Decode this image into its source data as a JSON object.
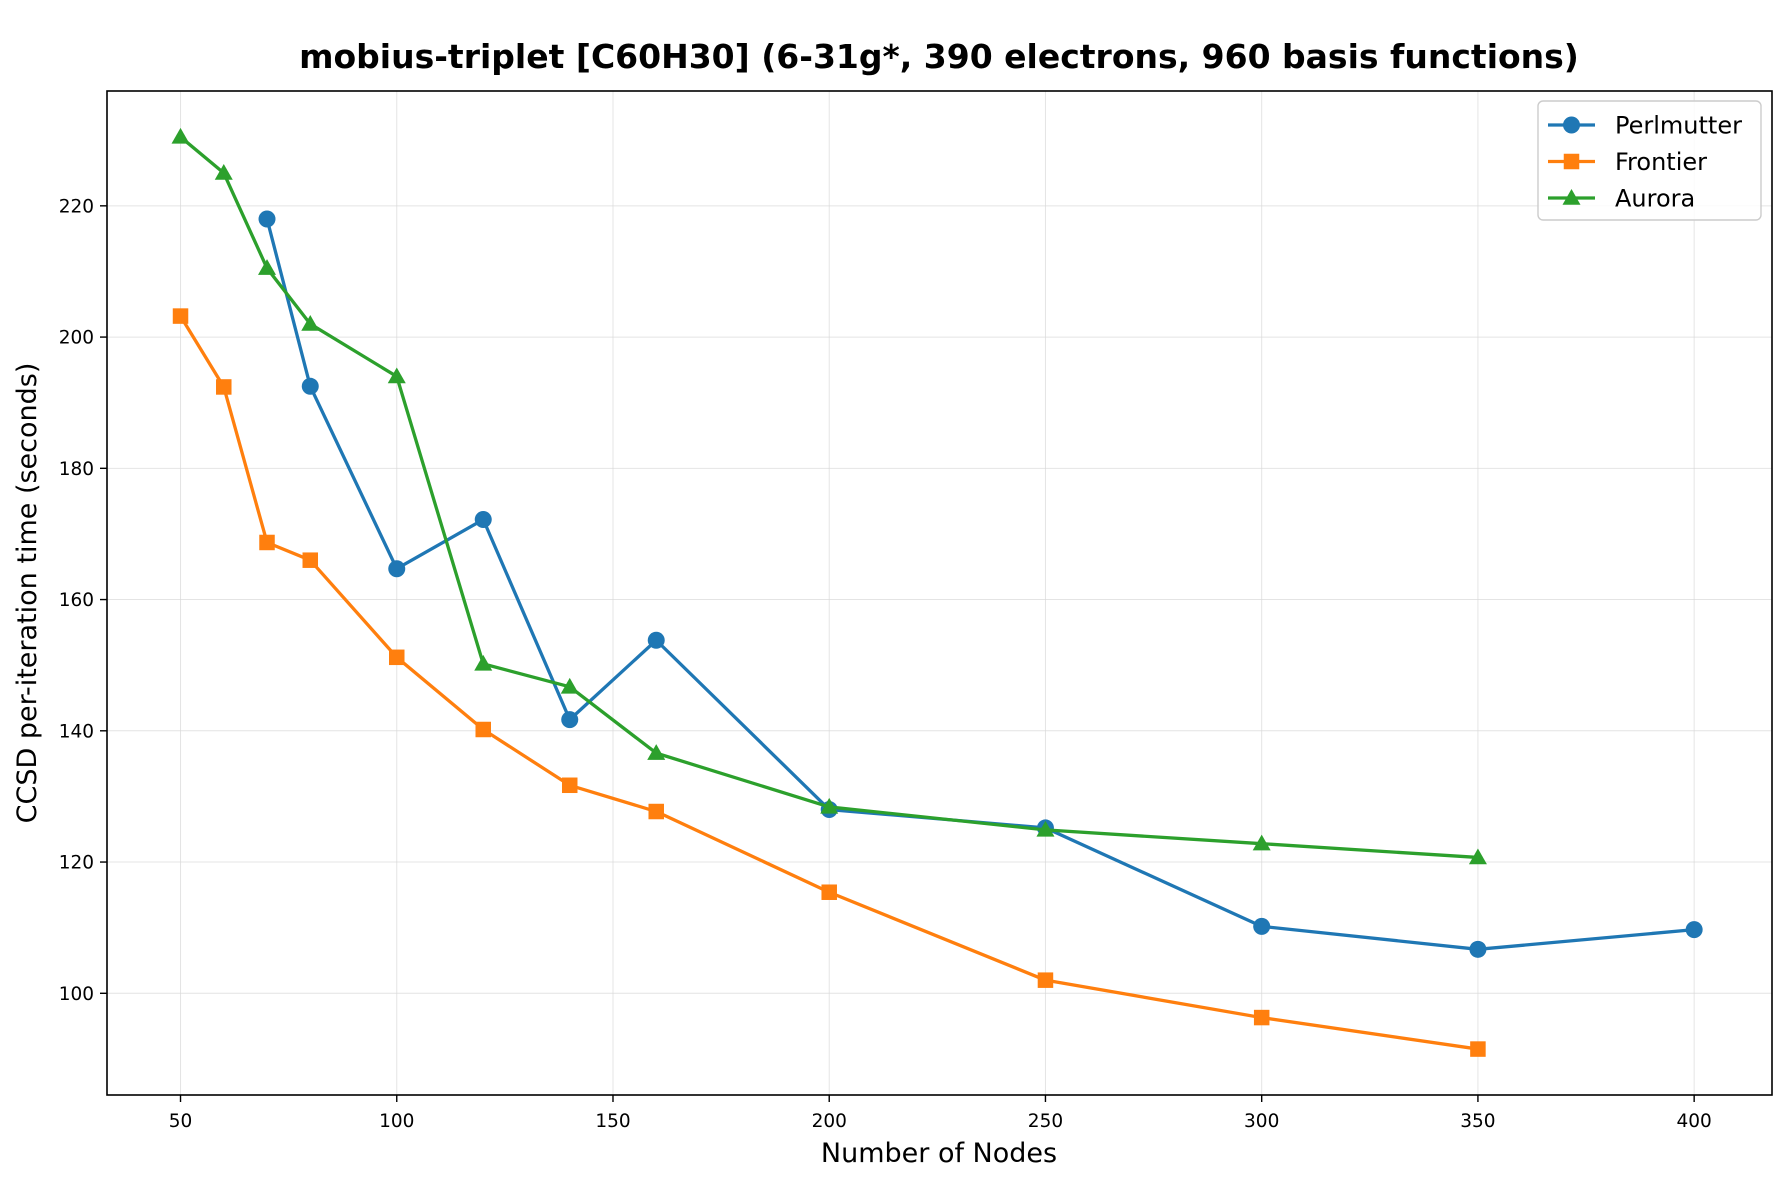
{
  "chart_data": {
    "type": "line",
    "title": "mobius-triplet [C60H30] (6-31g*, 390 electrons, 960 basis functions)",
    "xlabel": "Number of Nodes",
    "ylabel": "CCSD per-iteration time (seconds)",
    "xlim": [
      33,
      418
    ],
    "ylim": [
      84.5,
      237.5
    ],
    "xticks": [
      50,
      100,
      150,
      200,
      250,
      300,
      350,
      400
    ],
    "yticks": [
      100,
      120,
      140,
      160,
      180,
      200,
      220
    ],
    "grid": true,
    "legend_position": "top-right",
    "series": [
      {
        "name": "Perlmutter",
        "color": "#1f77b4",
        "marker": "circle",
        "x": [
          70,
          80,
          100,
          120,
          140,
          160,
          200,
          250,
          300,
          350,
          400
        ],
        "y": [
          218,
          192.5,
          164.7,
          172.2,
          141.7,
          153.8,
          128,
          125.2,
          110.2,
          106.7,
          109.7
        ]
      },
      {
        "name": "Frontier",
        "color": "#ff7f0e",
        "marker": "square",
        "x": [
          50,
          60,
          70,
          80,
          100,
          120,
          140,
          160,
          200,
          250,
          300,
          350
        ],
        "y": [
          203.2,
          192.4,
          168.7,
          166,
          151.2,
          140.2,
          131.7,
          127.7,
          115.4,
          102,
          96.3,
          91.5
        ]
      },
      {
        "name": "Aurora",
        "color": "#2ca02c",
        "marker": "triangle",
        "x": [
          50,
          60,
          70,
          80,
          100,
          120,
          140,
          160,
          200,
          250,
          300,
          350
        ],
        "y": [
          230.5,
          225,
          210.5,
          202,
          194,
          150.2,
          146.7,
          136.6,
          128.4,
          124.9,
          122.8,
          120.7
        ]
      }
    ]
  }
}
